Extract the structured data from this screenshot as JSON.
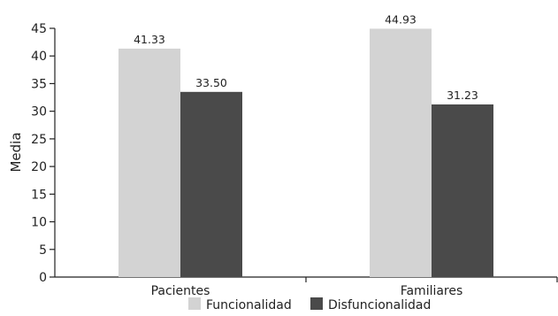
{
  "chart_data": {
    "type": "bar",
    "ylabel": "Media",
    "xlabel": "",
    "ylim": [
      0,
      45
    ],
    "yticks": [
      0,
      5,
      10,
      15,
      20,
      25,
      30,
      35,
      40,
      45
    ],
    "categories": [
      "Pacientes",
      "Familiares"
    ],
    "series": [
      {
        "name": "Funcionalidad",
        "values": [
          41.33,
          44.93
        ],
        "labels": [
          "41.33",
          "44.93"
        ],
        "color": "#d3d3d3"
      },
      {
        "name": "Disfuncionalidad",
        "values": [
          33.5,
          31.23
        ],
        "labels": [
          "33.50",
          "31.23"
        ],
        "color": "#4a4a4a"
      }
    ],
    "grid": false,
    "legend_position": "bottom-center"
  }
}
